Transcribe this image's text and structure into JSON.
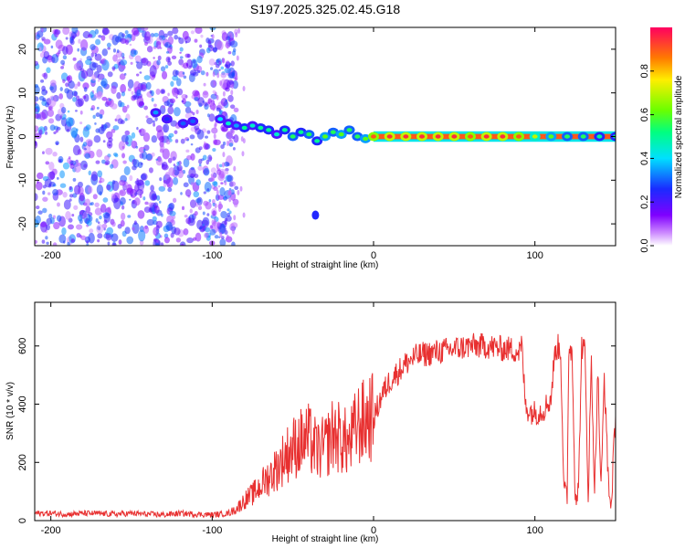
{
  "title": "S197.2025.325.02.45.G18",
  "chart_data": [
    {
      "type": "heatmap",
      "name": "spectrogram",
      "xlabel": "Height of straight line (km)",
      "ylabel": "Frequency (Hz)",
      "xlim": [
        -210,
        150
      ],
      "ylim": [
        -25,
        25
      ],
      "xticks": [
        -200,
        -100,
        0,
        100
      ],
      "xtick_labels": [
        "-200",
        "-100",
        "0",
        "100"
      ],
      "yticks": [
        -20,
        -10,
        0,
        10,
        20
      ],
      "ytick_labels": [
        "-20",
        "-10",
        "0",
        "10",
        "20"
      ],
      "signal_track": [
        {
          "x": -135,
          "y": 5.5,
          "amp": 0.35
        },
        {
          "x": -128,
          "y": 4.0,
          "amp": 0.25
        },
        {
          "x": -118,
          "y": 3.0,
          "amp": 0.3
        },
        {
          "x": -112,
          "y": 3.5,
          "amp": 0.3
        },
        {
          "x": -95,
          "y": 4.0,
          "amp": 0.4
        },
        {
          "x": -90,
          "y": 3.0,
          "amp": 0.45
        },
        {
          "x": -85,
          "y": 2.5,
          "amp": 0.35
        },
        {
          "x": -80,
          "y": 2.0,
          "amp": 0.5
        },
        {
          "x": -75,
          "y": 2.5,
          "amp": 0.45
        },
        {
          "x": -70,
          "y": 2.0,
          "amp": 0.5
        },
        {
          "x": -65,
          "y": 1.5,
          "amp": 0.5
        },
        {
          "x": -60,
          "y": 0.5,
          "amp": 0.45
        },
        {
          "x": -55,
          "y": 1.5,
          "amp": 0.5
        },
        {
          "x": -50,
          "y": 0.0,
          "amp": 0.55
        },
        {
          "x": -45,
          "y": 1.0,
          "amp": 0.5
        },
        {
          "x": -40,
          "y": 0.5,
          "amp": 0.55
        },
        {
          "x": -35,
          "y": -1.0,
          "amp": 0.5
        },
        {
          "x": -30,
          "y": 0.0,
          "amp": 0.6
        },
        {
          "x": -25,
          "y": 1.0,
          "amp": 0.55
        },
        {
          "x": -20,
          "y": 0.5,
          "amp": 0.6
        },
        {
          "x": -15,
          "y": 1.5,
          "amp": 0.55
        },
        {
          "x": -10,
          "y": 0.0,
          "amp": 0.55
        },
        {
          "x": -5,
          "y": -0.5,
          "amp": 0.6
        },
        {
          "x": 0,
          "y": 0.0,
          "amp": 0.9
        },
        {
          "x": 10,
          "y": 0.0,
          "amp": 0.95
        },
        {
          "x": 20,
          "y": 0.0,
          "amp": 0.95
        },
        {
          "x": 30,
          "y": 0.0,
          "amp": 0.95
        },
        {
          "x": 40,
          "y": 0.0,
          "amp": 0.95
        },
        {
          "x": 50,
          "y": 0.0,
          "amp": 0.95
        },
        {
          "x": 60,
          "y": 0.0,
          "amp": 0.9
        },
        {
          "x": 70,
          "y": 0.0,
          "amp": 0.95
        },
        {
          "x": 80,
          "y": 0.0,
          "amp": 0.95
        },
        {
          "x": 90,
          "y": 0.0,
          "amp": 0.9
        },
        {
          "x": 100,
          "y": 0.0,
          "amp": 0.7
        },
        {
          "x": 110,
          "y": 0.0,
          "amp": 0.6
        },
        {
          "x": 120,
          "y": 0.0,
          "amp": 0.55
        },
        {
          "x": 130,
          "y": 0.0,
          "amp": 0.55
        },
        {
          "x": 140,
          "y": 0.0,
          "amp": 0.5
        },
        {
          "x": 150,
          "y": 0.0,
          "amp": 0.5
        }
      ],
      "isolated_spot": {
        "x": -36,
        "y": -18,
        "amp": 0.25
      },
      "noise_region": {
        "x_from": -210,
        "x_to": -85,
        "amp_range": [
          0.05,
          0.35
        ]
      },
      "colorbar": {
        "label": "Normalized spectral amplitude",
        "range": [
          0,
          1
        ],
        "ticks": [
          0.0,
          0.2,
          0.4,
          0.6,
          0.8
        ],
        "tick_labels": [
          "0.0",
          "0.2",
          "0.4",
          "0.6",
          "0.8"
        ]
      }
    },
    {
      "type": "line",
      "name": "snr",
      "xlabel": "Height of straight line (km)",
      "ylabel": "SNR (10 * v/v)",
      "xlim": [
        -210,
        150
      ],
      "ylim": [
        0,
        750
      ],
      "xticks": [
        -200,
        -100,
        0,
        100
      ],
      "xtick_labels": [
        "-200",
        "-100",
        "0",
        "100"
      ],
      "yticks": [
        0,
        200,
        400,
        600
      ],
      "ytick_labels": [
        "0",
        "200",
        "400",
        "600"
      ],
      "color": "#e83030",
      "series": [
        {
          "name": "SNR",
          "x": [
            -210,
            -200,
            -190,
            -180,
            -170,
            -160,
            -150,
            -140,
            -130,
            -120,
            -110,
            -100,
            -95,
            -90,
            -85,
            -80,
            -75,
            -70,
            -65,
            -60,
            -55,
            -50,
            -45,
            -40,
            -35,
            -30,
            -25,
            -20,
            -15,
            -10,
            -5,
            -3,
            0,
            5,
            10,
            15,
            20,
            25,
            30,
            40,
            50,
            60,
            70,
            80,
            85,
            90,
            92,
            94,
            96,
            100,
            105,
            110,
            112,
            114,
            116,
            118,
            120,
            121,
            123,
            125,
            127,
            129,
            131,
            133,
            135,
            137,
            139,
            141,
            143,
            145,
            147,
            150
          ],
          "values": [
            25,
            25,
            22,
            25,
            24,
            22,
            25,
            22,
            20,
            25,
            22,
            20,
            22,
            25,
            40,
            70,
            90,
            120,
            150,
            180,
            220,
            250,
            270,
            280,
            240,
            250,
            300,
            280,
            260,
            330,
            340,
            360,
            350,
            430,
            480,
            510,
            540,
            560,
            570,
            580,
            590,
            600,
            600,
            590,
            590,
            580,
            600,
            400,
            380,
            370,
            380,
            420,
            560,
            600,
            580,
            100,
            80,
            600,
            580,
            90,
            100,
            600,
            580,
            90,
            540,
            100,
            520,
            100,
            500,
            200,
            30,
            360
          ]
        }
      ]
    }
  ]
}
